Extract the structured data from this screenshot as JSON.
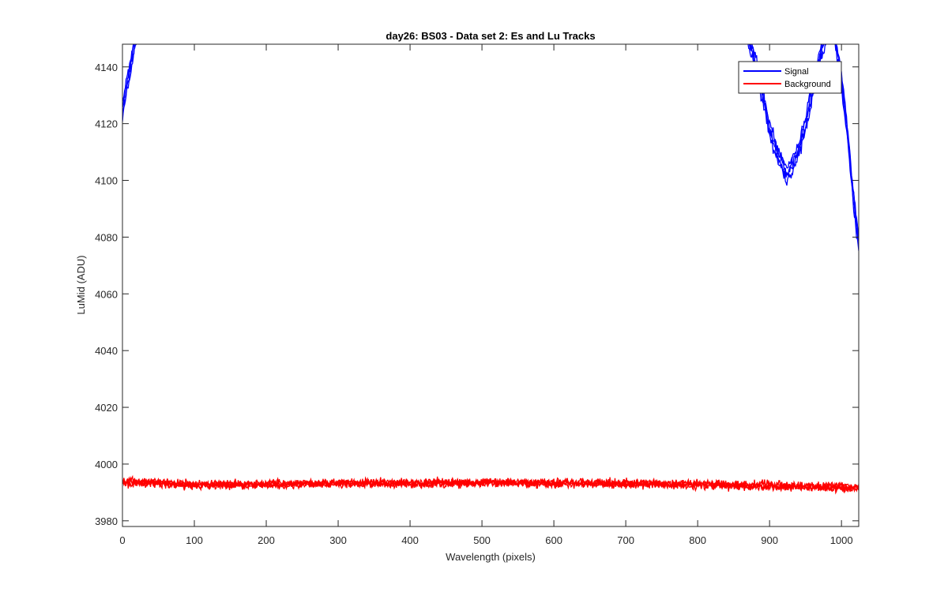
{
  "chart_data": {
    "type": "line",
    "title": "day26: BS03 - Data set 2: Es and Lu Tracks",
    "xlabel": "Wavelength (pixels)",
    "ylabel": "LuMid (ADU)",
    "xlim": [
      0,
      1024
    ],
    "ylim": [
      3978,
      4148
    ],
    "xticks": [
      0,
      100,
      200,
      300,
      400,
      500,
      600,
      700,
      800,
      900,
      1000
    ],
    "yticks": [
      3980,
      4000,
      4020,
      4040,
      4060,
      4080,
      4100,
      4120,
      4140
    ],
    "grid": false,
    "legend": {
      "placement": "top-right",
      "entries": [
        "Signal",
        "Background"
      ]
    },
    "series": [
      {
        "name": "Signal",
        "color": "#0000ff",
        "tracks": 4,
        "x": [
          0,
          5,
          10,
          15,
          20,
          25,
          860,
          870,
          880,
          890,
          900,
          910,
          920,
          925,
          930,
          940,
          950,
          960,
          970,
          980,
          985,
          990,
          1000,
          1010,
          1015,
          1020,
          1024
        ],
        "y": [
          4124,
          4132,
          4138,
          4146,
          4152,
          4158,
          4158,
          4150,
          4142,
          4130,
          4118,
          4110,
          4104,
          4102,
          4105,
          4110,
          4120,
          4132,
          4144,
          4152,
          4155,
          4152,
          4136,
          4112,
          4098,
          4086,
          4078
        ]
      },
      {
        "name": "Background",
        "color": "#ff0000",
        "tracks": 4,
        "x": [
          0,
          100,
          200,
          300,
          400,
          500,
          600,
          700,
          800,
          900,
          1000,
          1024
        ],
        "y": [
          3993.8,
          3992.6,
          3992.9,
          3993.3,
          3993.2,
          3993.5,
          3993.3,
          3993.1,
          3992.8,
          3992.4,
          3991.8,
          3991.6
        ],
        "noise": 1.3
      }
    ]
  }
}
